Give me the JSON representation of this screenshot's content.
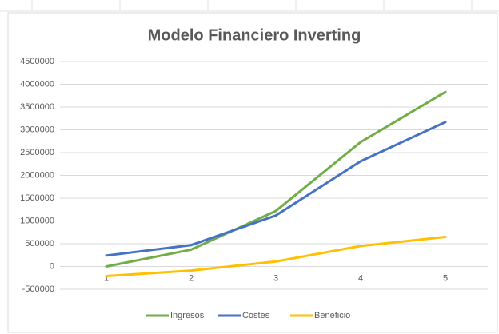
{
  "chart_data": {
    "type": "line",
    "title": "Modelo Financiero Inverting",
    "categories": [
      "1",
      "2",
      "3",
      "4",
      "5"
    ],
    "series": [
      {
        "name": "Ingresos",
        "color": "#70ad47",
        "values": [
          0,
          370000,
          1220000,
          2730000,
          3830000
        ]
      },
      {
        "name": "Costes",
        "color": "#4472c4",
        "values": [
          240000,
          470000,
          1120000,
          2310000,
          3170000
        ]
      },
      {
        "name": "Beneficio",
        "color": "#ffc000",
        "values": [
          -210000,
          -90000,
          110000,
          450000,
          650000
        ]
      }
    ],
    "ylim": [
      -500000,
      4500000
    ],
    "yticks": [
      -500000,
      0,
      500000,
      1000000,
      1500000,
      2000000,
      2500000,
      3000000,
      3500000,
      4000000,
      4500000
    ],
    "grid": true,
    "legend": "bottom"
  }
}
